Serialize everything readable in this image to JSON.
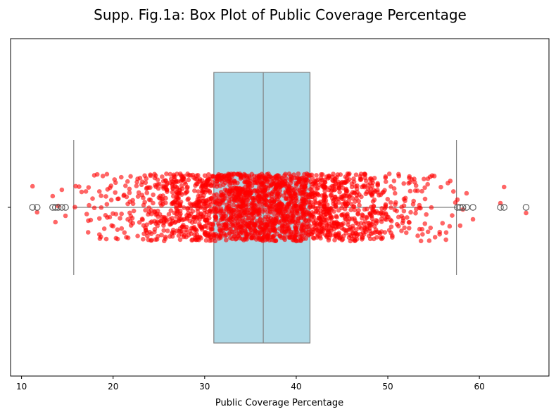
{
  "chart_data": {
    "type": "box",
    "title": "Supp. Fig.1a: Box Plot of Public Coverage Percentage",
    "xlabel": "Public Coverage Percentage",
    "ylabel": "",
    "xlim": [
      8.8,
      67.6
    ],
    "xticks": [
      10,
      20,
      30,
      40,
      50,
      60
    ],
    "orientation": "horizontal",
    "box": {
      "whisker_low": 15.7,
      "q1": 31.0,
      "median": 36.4,
      "q3": 41.5,
      "whisker_high": 57.5
    },
    "outliers": [
      11.2,
      11.7,
      13.4,
      13.7,
      14.0,
      14.4,
      14.8,
      57.6,
      57.9,
      58.2,
      58.6,
      59.3,
      62.3,
      62.7,
      65.1
    ],
    "jitter_points": {
      "description_hidden": true,
      "count": 2200,
      "range": [
        11.2,
        65.1
      ],
      "spread": 0.4
    },
    "colors": {
      "box_fill": "#add8e6",
      "box_edge": "#808080",
      "points": "#ff0000",
      "outlier_edge": "#555555"
    },
    "grid": false
  }
}
